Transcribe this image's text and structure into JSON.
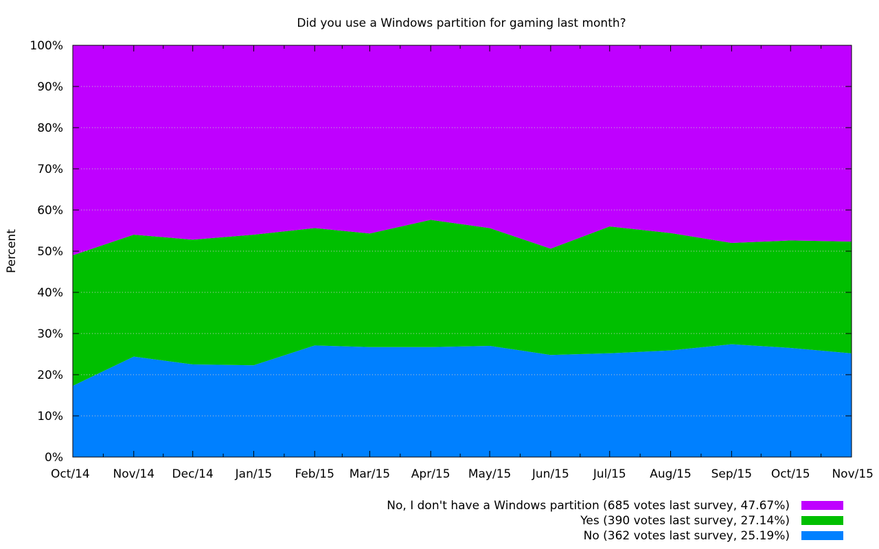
{
  "chart_data": {
    "type": "area",
    "stacked": true,
    "title": "Did you use a Windows partition for gaming last month?",
    "xlabel": "",
    "ylabel": "Percent",
    "ylim": [
      0,
      100
    ],
    "y_ticks": [
      "0%",
      "10%",
      "20%",
      "30%",
      "40%",
      "50%",
      "60%",
      "70%",
      "80%",
      "90%",
      "100%"
    ],
    "categories": [
      "Oct/14",
      "Nov/14",
      "Dec/14",
      "Jan/15",
      "Feb/15",
      "Mar/15",
      "Apr/15",
      "May/15",
      "Jun/15",
      "Jul/15",
      "Aug/15",
      "Sep/15",
      "Oct/15",
      "Nov/15"
    ],
    "x_days": [
      0,
      31,
      61,
      92,
      123,
      151,
      182,
      212,
      243,
      273,
      304,
      335,
      365,
      396
    ],
    "grid": true,
    "legend_position": "bottom-right",
    "series": [
      {
        "name": "No (362 votes last survey, 25.19%)",
        "color": "#0080ff",
        "values": [
          17.3,
          24.4,
          22.5,
          22.3,
          27.1,
          26.7,
          26.7,
          27.0,
          24.8,
          25.2,
          25.9,
          27.4,
          26.5,
          25.19
        ]
      },
      {
        "name": "Yes (390 votes last survey, 27.14%)",
        "color": "#00bf00",
        "values": [
          31.7,
          29.6,
          30.3,
          31.7,
          28.5,
          27.6,
          30.9,
          28.6,
          25.8,
          30.8,
          28.5,
          24.6,
          26.1,
          27.14
        ]
      },
      {
        "name": "No, I don't have a Windows partition (685 votes last survey, 47.67%)",
        "color": "#bf00ff",
        "values": [
          51.0,
          46.0,
          47.2,
          46.0,
          44.4,
          45.7,
          42.4,
          44.4,
          49.4,
          44.0,
          45.6,
          48.0,
          47.4,
          47.67
        ]
      }
    ]
  }
}
